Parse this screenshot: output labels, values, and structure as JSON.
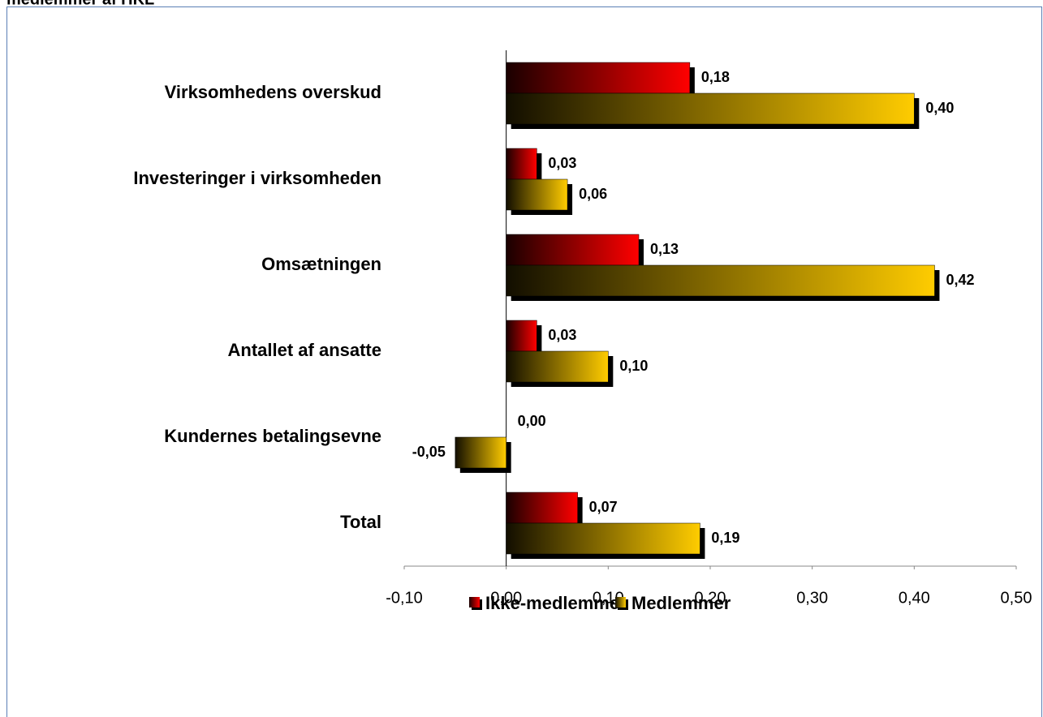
{
  "chart_data": {
    "type": "bar",
    "orientation": "horizontal",
    "title": "medlemmer af HKL",
    "categories": [
      "Virksomhedens overskud",
      "Investeringer i virksomheden",
      "Omsætningen",
      "Antallet af ansatte",
      "Kundernes betalingsevne",
      "Total"
    ],
    "series": [
      {
        "name": "Ikke-medlemmer",
        "color": "#ff0000",
        "values": [
          0.18,
          0.03,
          0.13,
          0.03,
          0.0,
          0.07
        ],
        "value_labels": [
          "0,18",
          "0,03",
          "0,13",
          "0,03",
          "0,00",
          "0,07"
        ]
      },
      {
        "name": "Medlemmer",
        "color": "#ffcc00",
        "values": [
          0.4,
          0.06,
          0.42,
          0.1,
          -0.05,
          0.19
        ],
        "value_labels": [
          "0,40",
          "0,06",
          "0,42",
          "0,10",
          "-0,05",
          "0,19"
        ]
      }
    ],
    "xlim": [
      -0.1,
      0.5
    ],
    "xticks": [
      {
        "value": -0.1,
        "label": "-0,10"
      },
      {
        "value": 0.0,
        "label": "0,00"
      },
      {
        "value": 0.1,
        "label": "0,10"
      },
      {
        "value": 0.2,
        "label": "0,20"
      },
      {
        "value": 0.3,
        "label": "0,30"
      },
      {
        "value": 0.4,
        "label": "0,40"
      },
      {
        "value": 0.5,
        "label": "0,50"
      }
    ],
    "legend": "bottom"
  }
}
